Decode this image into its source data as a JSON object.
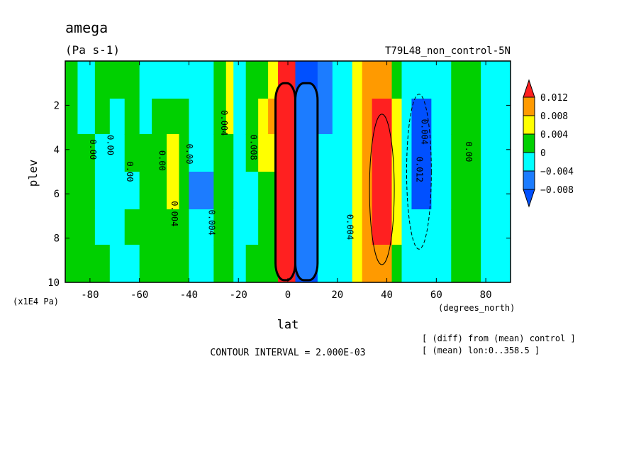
{
  "chart_data": {
    "type": "heatmap",
    "title": "amega",
    "units": "(Pa s-1)",
    "experiment": "T79L48_non_control-5N",
    "xlabel": "lat",
    "xunits": "(degrees_north)",
    "ylabel": "plev",
    "yunits": "(x1E4 Pa)",
    "xlim": [
      -90,
      90
    ],
    "ylim": [
      10,
      0
    ],
    "xticks": [
      "-80",
      "-60",
      "-40",
      "-20",
      "0",
      "20",
      "40",
      "60",
      "80"
    ],
    "xtick_values": [
      -80,
      -60,
      -40,
      -20,
      0,
      20,
      40,
      60,
      80
    ],
    "yticks": [
      "2",
      "4",
      "6",
      "8",
      "10"
    ],
    "ytick_values": [
      2,
      4,
      6,
      8,
      10
    ],
    "contour_interval": "CONTOUR INTERVAL = 2.000E-03",
    "notes": [
      "[ (diff) from (mean) control ]",
      "[ (mean) lon:0..358.5 ]"
    ],
    "colorbar": {
      "labels": [
        "0.012",
        "0.008",
        "0.004",
        "0",
        "−0.004",
        "−0.008"
      ],
      "levels": [
        0.012,
        0.008,
        0.004,
        0,
        -0.004,
        -0.008
      ],
      "colors": [
        "#ff2020",
        "#ff9a00",
        "#ffff00",
        "#00d000",
        "#00ffff",
        "#1c7cff",
        "#0050ff"
      ]
    },
    "contour_labels": [
      {
        "text": "0.00",
        "lat": -80,
        "plev": 4.0
      },
      {
        "text": "0.00",
        "lat": -73,
        "plev": 3.8
      },
      {
        "text": "0.00",
        "lat": -65,
        "plev": 5.0
      },
      {
        "text": "0.00",
        "lat": -52,
        "plev": 4.5
      },
      {
        "text": "0.004",
        "lat": -47,
        "plev": 6.9
      },
      {
        "text": "0.00",
        "lat": -41,
        "plev": 4.2
      },
      {
        "text": "0.004",
        "lat": -32,
        "plev": 7.3
      },
      {
        "text": "0.004",
        "lat": -27,
        "plev": 2.8
      },
      {
        "text": "0.008",
        "lat": -15,
        "plev": 3.9
      },
      {
        "text": "0.004",
        "lat": 24,
        "plev": 7.5
      },
      {
        "text": "0.004",
        "lat": 54,
        "plev": 3.2
      },
      {
        "text": "0.012",
        "lat": 52,
        "plev": 4.9
      },
      {
        "text": "0.00",
        "lat": 72,
        "plev": 4.1
      }
    ],
    "cells": [
      {
        "lat_min": -90,
        "lat_max": -85,
        "values": [
          0,
          0,
          0,
          0,
          0,
          0
        ]
      },
      {
        "lat_min": -85,
        "lat_max": -78,
        "values": [
          -0.001,
          -0.001,
          0.001,
          0.001,
          0.001,
          0.001
        ]
      },
      {
        "lat_min": -78,
        "lat_max": -72,
        "values": [
          0.001,
          0.001,
          -0.001,
          -0.001,
          -0.001,
          0.001
        ]
      },
      {
        "lat_min": -72,
        "lat_max": -66,
        "values": [
          0.001,
          -0.001,
          -0.001,
          -0.001,
          -0.001,
          -0.001
        ]
      },
      {
        "lat_min": -66,
        "lat_max": -60,
        "values": [
          0.001,
          0.001,
          0.001,
          -0.001,
          0.001,
          -0.001
        ]
      },
      {
        "lat_min": -60,
        "lat_max": -55,
        "values": [
          -0.001,
          -0.001,
          0.001,
          0.001,
          0.001,
          0.001
        ]
      },
      {
        "lat_min": -55,
        "lat_max": -49,
        "values": [
          -0.001,
          0.001,
          0.001,
          0.001,
          0.001,
          0.001
        ]
      },
      {
        "lat_min": -49,
        "lat_max": -44,
        "values": [
          -0.001,
          0.001,
          0.005,
          0.005,
          0.001,
          0.001
        ]
      },
      {
        "lat_min": -44,
        "lat_max": -40,
        "values": [
          -0.001,
          0.001,
          0.001,
          0.001,
          0.001,
          0.001
        ]
      },
      {
        "lat_min": -40,
        "lat_max": -30,
        "values": [
          -0.001,
          -0.001,
          -0.003,
          -0.005,
          -0.003,
          -0.001
        ]
      },
      {
        "lat_min": -30,
        "lat_max": -25,
        "values": [
          0.001,
          0.001,
          0.001,
          0.001,
          0.001,
          0.001
        ]
      },
      {
        "lat_min": -25,
        "lat_max": -22,
        "values": [
          0.005,
          0.005,
          0.001,
          0.001,
          0.001,
          0.001
        ]
      },
      {
        "lat_min": -22,
        "lat_max": -17,
        "values": [
          -0.001,
          -0.001,
          -0.001,
          -0.001,
          -0.001,
          -0.001
        ]
      },
      {
        "lat_min": -17,
        "lat_max": -12,
        "values": [
          0.001,
          0.001,
          0.001,
          -0.001,
          -0.001,
          0.001
        ]
      },
      {
        "lat_min": -12,
        "lat_max": -8,
        "values": [
          0.001,
          0.005,
          0.005,
          0.001,
          0.001,
          0.001
        ]
      },
      {
        "lat_min": -8,
        "lat_max": -4,
        "values": [
          0.005,
          0.009,
          0.005,
          0.001,
          0.001,
          0.001
        ]
      },
      {
        "lat_min": -4,
        "lat_max": 3,
        "values": [
          0.015,
          0.015,
          0.015,
          0.015,
          0.015,
          0.015
        ]
      },
      {
        "lat_min": 3,
        "lat_max": 12,
        "values": [
          -0.01,
          -0.01,
          -0.01,
          -0.01,
          -0.01,
          -0.01
        ]
      },
      {
        "lat_min": 12,
        "lat_max": 18,
        "values": [
          -0.005,
          -0.005,
          -0.003,
          -0.003,
          -0.003,
          -0.001
        ]
      },
      {
        "lat_min": 18,
        "lat_max": 26,
        "values": [
          -0.001,
          -0.003,
          -0.003,
          -0.003,
          -0.003,
          -0.001
        ]
      },
      {
        "lat_min": 26,
        "lat_max": 30,
        "values": [
          0.005,
          0.005,
          0.005,
          0.005,
          0.005,
          0.005
        ]
      },
      {
        "lat_min": 30,
        "lat_max": 34,
        "values": [
          0.009,
          0.009,
          0.009,
          0.009,
          0.009,
          0.009
        ]
      },
      {
        "lat_min": 34,
        "lat_max": 42,
        "values": [
          0.009,
          0.015,
          0.015,
          0.015,
          0.015,
          0.009
        ]
      },
      {
        "lat_min": 42,
        "lat_max": 46,
        "values": [
          0.001,
          0.005,
          0.005,
          0.005,
          0.005,
          0.001
        ]
      },
      {
        "lat_min": 46,
        "lat_max": 50,
        "values": [
          -0.001,
          -0.003,
          -0.003,
          -0.003,
          -0.003,
          -0.001
        ]
      },
      {
        "lat_min": 50,
        "lat_max": 58,
        "values": [
          -0.003,
          -0.01,
          -0.01,
          -0.01,
          -0.003,
          -0.003
        ]
      },
      {
        "lat_min": 58,
        "lat_max": 66,
        "values": [
          -0.001,
          -0.001,
          -0.001,
          -0.001,
          -0.001,
          -0.001
        ]
      },
      {
        "lat_min": 66,
        "lat_max": 78,
        "values": [
          0.001,
          0.001,
          0.001,
          0.001,
          0.001,
          0.001
        ]
      },
      {
        "lat_min": 78,
        "lat_max": 90,
        "values": [
          -0.001,
          -0.001,
          -0.001,
          -0.001,
          -0.001,
          -0.001
        ]
      }
    ],
    "plev_bands": [
      [
        0.0,
        1.7
      ],
      [
        1.7,
        3.3
      ],
      [
        3.3,
        5.0
      ],
      [
        5.0,
        6.7
      ],
      [
        6.7,
        8.3
      ],
      [
        8.3,
        10.0
      ]
    ]
  }
}
